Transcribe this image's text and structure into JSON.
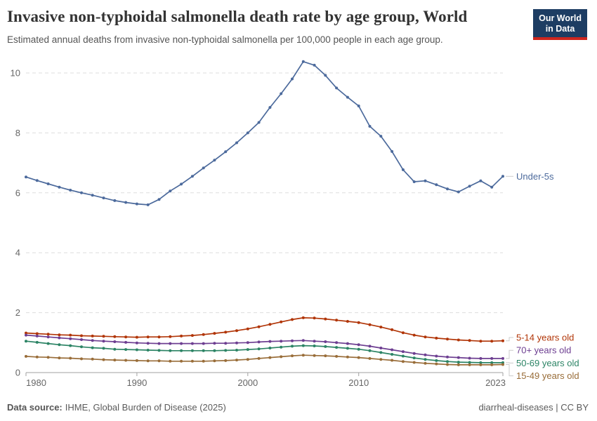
{
  "logo": {
    "line1": "Our World",
    "line2": "in Data",
    "bg": "#1d3d63",
    "accent": "#ce261e"
  },
  "footer": {
    "source_label": "Data source:",
    "source_text": "IHME, Global Burden of Disease (2025)",
    "license": "diarrheal-diseases | CC BY"
  },
  "chart_data": {
    "type": "line",
    "title": "Invasive non-typhoidal salmonella death rate by age group, World",
    "subtitle": "Estimated annual deaths from invasive non-typhoidal salmonella per 100,000 people in each age group.",
    "xlabel": "",
    "ylabel": "",
    "x": [
      1980,
      1981,
      1982,
      1983,
      1984,
      1985,
      1986,
      1987,
      1988,
      1989,
      1990,
      1991,
      1992,
      1993,
      1994,
      1995,
      1996,
      1997,
      1998,
      1999,
      2000,
      2001,
      2002,
      2003,
      2004,
      2005,
      2006,
      2007,
      2008,
      2009,
      2010,
      2011,
      2012,
      2013,
      2014,
      2015,
      2016,
      2017,
      2018,
      2019,
      2020,
      2021,
      2022,
      2023
    ],
    "xticks": [
      1980,
      1990,
      2000,
      2010,
      2023
    ],
    "yticks": [
      0,
      2,
      4,
      6,
      8,
      10
    ],
    "ylim": [
      0,
      10.5
    ],
    "grid": "horizontal-dashed",
    "legend_position": "labels-at-line-ends",
    "marker": "dot",
    "series": [
      {
        "name": "Under-5s",
        "color": "#4C6A9C",
        "values": [
          6.53,
          6.41,
          6.3,
          6.19,
          6.09,
          6.0,
          5.92,
          5.83,
          5.74,
          5.68,
          5.63,
          5.6,
          5.78,
          6.06,
          6.29,
          6.55,
          6.83,
          7.09,
          7.37,
          7.67,
          8.0,
          8.35,
          8.85,
          9.31,
          9.8,
          10.38,
          10.26,
          9.92,
          9.5,
          9.19,
          8.9,
          8.22,
          7.89,
          7.38,
          6.77,
          6.37,
          6.4,
          6.27,
          6.13,
          6.03,
          6.22,
          6.4,
          6.19,
          6.55
        ]
      },
      {
        "name": "5-14 years old",
        "color": "#B13507",
        "values": [
          1.32,
          1.3,
          1.28,
          1.26,
          1.25,
          1.23,
          1.22,
          1.21,
          1.2,
          1.19,
          1.18,
          1.19,
          1.19,
          1.2,
          1.22,
          1.24,
          1.27,
          1.31,
          1.35,
          1.4,
          1.46,
          1.53,
          1.61,
          1.69,
          1.77,
          1.83,
          1.82,
          1.79,
          1.75,
          1.71,
          1.67,
          1.6,
          1.52,
          1.43,
          1.33,
          1.25,
          1.19,
          1.15,
          1.12,
          1.09,
          1.07,
          1.05,
          1.05,
          1.06
        ]
      },
      {
        "name": "70+ years old",
        "color": "#6D3E91",
        "values": [
          1.25,
          1.22,
          1.19,
          1.16,
          1.13,
          1.1,
          1.07,
          1.05,
          1.03,
          1.01,
          0.99,
          0.98,
          0.97,
          0.97,
          0.97,
          0.97,
          0.97,
          0.98,
          0.98,
          0.99,
          1.0,
          1.02,
          1.04,
          1.05,
          1.06,
          1.07,
          1.05,
          1.03,
          1.0,
          0.97,
          0.93,
          0.88,
          0.82,
          0.76,
          0.7,
          0.64,
          0.59,
          0.55,
          0.52,
          0.5,
          0.48,
          0.47,
          0.47,
          0.47
        ]
      },
      {
        "name": "50-69 years old",
        "color": "#2C8465",
        "values": [
          1.05,
          1.01,
          0.97,
          0.93,
          0.9,
          0.86,
          0.83,
          0.81,
          0.78,
          0.77,
          0.76,
          0.75,
          0.74,
          0.73,
          0.73,
          0.73,
          0.73,
          0.73,
          0.74,
          0.75,
          0.77,
          0.79,
          0.82,
          0.85,
          0.88,
          0.9,
          0.89,
          0.87,
          0.84,
          0.81,
          0.78,
          0.73,
          0.67,
          0.61,
          0.55,
          0.49,
          0.44,
          0.4,
          0.37,
          0.35,
          0.34,
          0.33,
          0.33,
          0.33
        ]
      },
      {
        "name": "15-49 years old",
        "color": "#996D39",
        "values": [
          0.54,
          0.52,
          0.51,
          0.49,
          0.48,
          0.46,
          0.45,
          0.43,
          0.42,
          0.41,
          0.4,
          0.39,
          0.39,
          0.38,
          0.38,
          0.38,
          0.38,
          0.39,
          0.4,
          0.42,
          0.44,
          0.47,
          0.5,
          0.53,
          0.56,
          0.58,
          0.57,
          0.56,
          0.54,
          0.52,
          0.5,
          0.47,
          0.44,
          0.41,
          0.37,
          0.34,
          0.31,
          0.29,
          0.27,
          0.26,
          0.26,
          0.26,
          0.26,
          0.27
        ]
      }
    ]
  }
}
